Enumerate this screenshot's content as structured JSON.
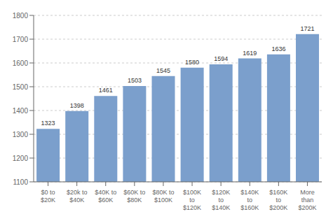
{
  "chart_data": {
    "type": "bar",
    "categories": [
      "$0 to\n$20K",
      "$20k to\n$40K",
      "$40K to\n$60K",
      "$60K to\n$80K",
      "$80K to\n$100K",
      "$100K\nto\n$120K",
      "$120K\nto\n$140K",
      "$140K\nto\n$160K",
      "$160K\nto\n$200K",
      "More\nthan\n$200K"
    ],
    "values": [
      1323,
      1398,
      1461,
      1503,
      1545,
      1580,
      1594,
      1619,
      1636,
      1721
    ],
    "color": "#7B9FCC",
    "ylim": [
      1100,
      1800
    ],
    "yticks": [
      1100,
      1200,
      1300,
      1400,
      1500,
      1600,
      1700,
      1800
    ],
    "grid": true,
    "data_labels": true
  }
}
